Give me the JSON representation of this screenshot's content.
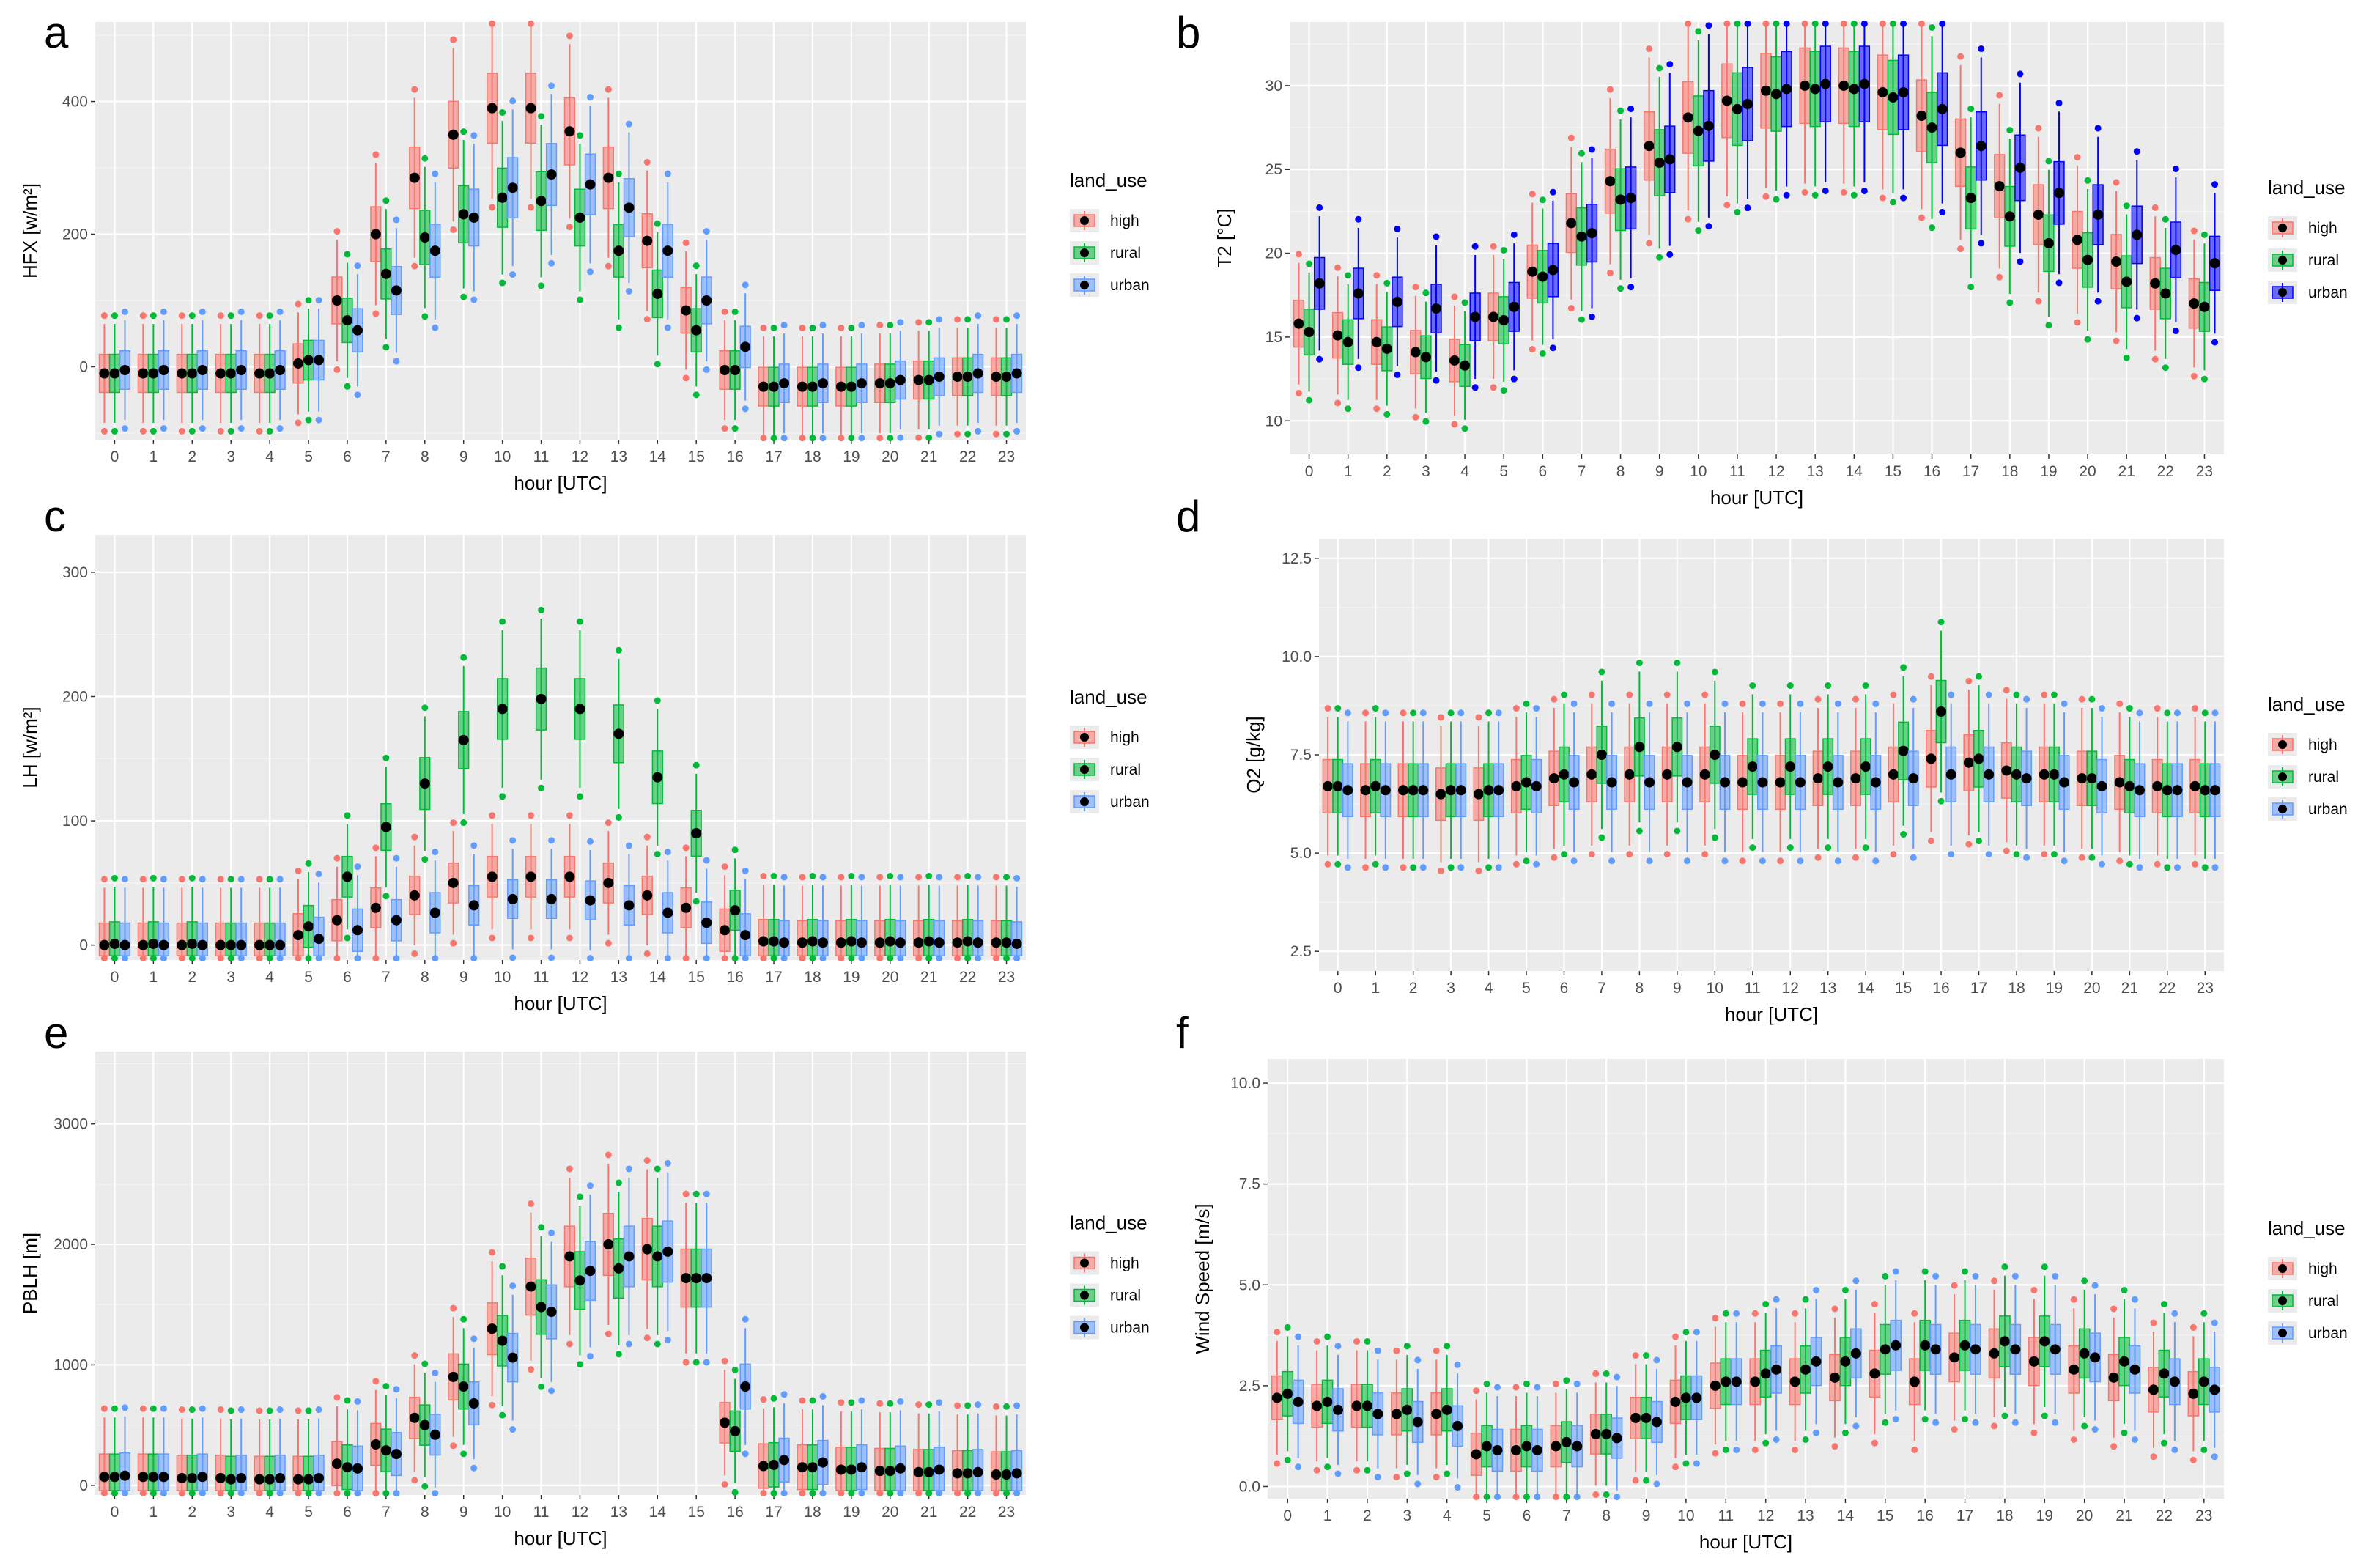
{
  "figure": {
    "legend_title": "land_use",
    "legend_entries": [
      "high",
      "rural",
      "urban"
    ],
    "xlabel": "hour [UTC]"
  },
  "chart_data": [
    {
      "panel": "a",
      "type": "box",
      "ylabel": "HFX [w/m²]",
      "xlabel": "hour [UTC]",
      "categories": [
        "0",
        "1",
        "2",
        "3",
        "4",
        "5",
        "6",
        "7",
        "8",
        "9",
        "10",
        "11",
        "12",
        "13",
        "14",
        "15",
        "16",
        "17",
        "18",
        "19",
        "20",
        "21",
        "22",
        "23"
      ],
      "ylim": [
        -110,
        520
      ],
      "yticks": [
        0,
        200,
        400
      ],
      "ytick_labels": [
        "0",
        "200",
        "400"
      ],
      "series": [
        {
          "name": "high",
          "color": "#F8766D",
          "medians": [
            -10,
            -10,
            -10,
            -10,
            -10,
            5,
            100,
            200,
            285,
            350,
            390,
            390,
            355,
            285,
            190,
            85,
            -5,
            -30,
            -30,
            -30,
            -25,
            -20,
            -15,
            -15
          ]
        },
        {
          "name": "rural",
          "color": "#00BA38",
          "medians": [
            -10,
            -10,
            -10,
            -10,
            -10,
            10,
            70,
            140,
            195,
            230,
            255,
            250,
            225,
            175,
            110,
            55,
            -5,
            -30,
            -30,
            -30,
            -25,
            -20,
            -15,
            -15
          ]
        },
        {
          "name": "urban",
          "color": "#619CFF",
          "medians": [
            -5,
            -5,
            -5,
            -5,
            -5,
            10,
            55,
            115,
            175,
            225,
            270,
            290,
            275,
            240,
            175,
            100,
            30,
            -25,
            -25,
            -25,
            -20,
            -15,
            -10,
            -10
          ]
        }
      ]
    },
    {
      "panel": "b",
      "type": "box",
      "ylabel": "T2 [°C]",
      "xlabel": "hour [UTC]",
      "categories": [
        "0",
        "1",
        "2",
        "3",
        "4",
        "5",
        "6",
        "7",
        "8",
        "9",
        "10",
        "11",
        "12",
        "13",
        "14",
        "15",
        "16",
        "17",
        "18",
        "19",
        "20",
        "21",
        "22",
        "23"
      ],
      "ylim": [
        8,
        33.8
      ],
      "yticks": [
        10,
        15,
        20,
        25,
        30
      ],
      "ytick_labels": [
        "10",
        "15",
        "20",
        "25",
        "30"
      ],
      "series": [
        {
          "name": "high",
          "color": "#F8766D",
          "medians": [
            15.8,
            15.1,
            14.7,
            14.1,
            13.6,
            16.2,
            18.9,
            21.8,
            24.3,
            26.4,
            28.1,
            29.1,
            29.7,
            30.0,
            30.0,
            29.6,
            28.2,
            26.0,
            24.0,
            22.3,
            20.8,
            19.5,
            18.2,
            17.0
          ]
        },
        {
          "name": "rural",
          "color": "#00BA38",
          "medians": [
            15.3,
            14.7,
            14.3,
            13.8,
            13.3,
            16.0,
            18.6,
            21.0,
            23.2,
            25.4,
            27.3,
            28.6,
            29.5,
            29.8,
            29.8,
            29.3,
            27.5,
            23.3,
            22.2,
            20.6,
            19.6,
            18.3,
            17.6,
            16.8
          ]
        },
        {
          "name": "urban",
          "color": "#0000FF",
          "medians": [
            18.2,
            17.6,
            17.1,
            16.7,
            16.2,
            16.8,
            19.0,
            21.2,
            23.3,
            25.6,
            27.6,
            28.9,
            29.8,
            30.1,
            30.1,
            29.6,
            28.6,
            26.4,
            25.1,
            23.6,
            22.3,
            21.1,
            20.2,
            19.4
          ]
        }
      ]
    },
    {
      "panel": "c",
      "type": "box",
      "ylabel": "LH [w/m²]",
      "xlabel": "hour [UTC]",
      "categories": [
        "0",
        "1",
        "2",
        "3",
        "4",
        "5",
        "6",
        "7",
        "8",
        "9",
        "10",
        "11",
        "12",
        "13",
        "14",
        "15",
        "16",
        "17",
        "18",
        "19",
        "20",
        "21",
        "22",
        "23"
      ],
      "ylim": [
        -12,
        330
      ],
      "yticks": [
        0,
        100,
        200,
        300
      ],
      "ytick_labels": [
        "0",
        "100",
        "200",
        "300"
      ],
      "series": [
        {
          "name": "high",
          "color": "#F8766D",
          "medians": [
            0,
            0,
            0,
            0,
            0,
            8,
            20,
            30,
            40,
            50,
            55,
            55,
            55,
            50,
            40,
            30,
            12,
            3,
            2,
            2,
            2,
            2,
            2,
            2
          ]
        },
        {
          "name": "rural",
          "color": "#00BA38",
          "medians": [
            1,
            1,
            1,
            0,
            0,
            15,
            55,
            95,
            130,
            165,
            190,
            198,
            190,
            170,
            135,
            90,
            28,
            3,
            3,
            3,
            3,
            3,
            3,
            2
          ]
        },
        {
          "name": "urban",
          "color": "#619CFF",
          "medians": [
            0,
            0,
            0,
            0,
            0,
            5,
            12,
            20,
            26,
            32,
            37,
            37,
            36,
            32,
            26,
            18,
            8,
            2,
            2,
            2,
            2,
            2,
            2,
            1
          ]
        }
      ]
    },
    {
      "panel": "d",
      "type": "box",
      "ylabel": "Q2 [g/kg]",
      "xlabel": "hour [UTC]",
      "categories": [
        "0",
        "1",
        "2",
        "3",
        "4",
        "5",
        "6",
        "7",
        "8",
        "9",
        "10",
        "11",
        "12",
        "13",
        "14",
        "15",
        "16",
        "17",
        "18",
        "19",
        "20",
        "21",
        "22",
        "23"
      ],
      "ylim": [
        2.0,
        13.0
      ],
      "yticks": [
        2.5,
        5.0,
        7.5,
        10.0,
        12.5
      ],
      "ytick_labels": [
        "2.5",
        "5.0",
        "7.5",
        "10.0",
        "12.5"
      ],
      "series": [
        {
          "name": "high",
          "color": "#F8766D",
          "medians": [
            6.7,
            6.6,
            6.6,
            6.5,
            6.5,
            6.7,
            6.9,
            7.0,
            7.0,
            7.0,
            7.0,
            6.8,
            6.8,
            6.9,
            6.9,
            7.0,
            7.4,
            7.3,
            7.1,
            7.0,
            6.9,
            6.8,
            6.7,
            6.7
          ]
        },
        {
          "name": "rural",
          "color": "#00BA38",
          "medians": [
            6.7,
            6.7,
            6.6,
            6.6,
            6.6,
            6.8,
            7.0,
            7.5,
            7.7,
            7.7,
            7.5,
            7.2,
            7.2,
            7.2,
            7.2,
            7.6,
            8.6,
            7.4,
            7.0,
            7.0,
            6.9,
            6.7,
            6.6,
            6.6
          ]
        },
        {
          "name": "urban",
          "color": "#619CFF",
          "medians": [
            6.6,
            6.6,
            6.6,
            6.6,
            6.6,
            6.7,
            6.8,
            6.8,
            6.8,
            6.8,
            6.8,
            6.8,
            6.8,
            6.8,
            6.8,
            6.9,
            7.0,
            7.0,
            6.9,
            6.8,
            6.7,
            6.6,
            6.6,
            6.6
          ]
        }
      ]
    },
    {
      "panel": "e",
      "type": "box",
      "ylabel": "PBLH [m]",
      "xlabel": "hour [UTC]",
      "categories": [
        "0",
        "1",
        "2",
        "3",
        "4",
        "5",
        "6",
        "7",
        "8",
        "9",
        "10",
        "11",
        "12",
        "13",
        "14",
        "15",
        "16",
        "17",
        "18",
        "19",
        "20",
        "21",
        "22",
        "23"
      ],
      "ylim": [
        -80,
        3600
      ],
      "yticks": [
        0,
        1000,
        2000,
        3000
      ],
      "ytick_labels": [
        "0",
        "1000",
        "2000",
        "3000"
      ],
      "series": [
        {
          "name": "high",
          "color": "#F8766D",
          "medians": [
            70,
            70,
            60,
            60,
            50,
            50,
            180,
            340,
            560,
            900,
            1300,
            1650,
            1900,
            2000,
            1960,
            1720,
            520,
            160,
            150,
            130,
            120,
            110,
            100,
            90
          ]
        },
        {
          "name": "rural",
          "color": "#00BA38",
          "medians": [
            70,
            70,
            60,
            50,
            50,
            50,
            150,
            290,
            500,
            820,
            1200,
            1480,
            1700,
            1800,
            1900,
            1720,
            450,
            170,
            150,
            130,
            120,
            110,
            100,
            90
          ]
        },
        {
          "name": "urban",
          "color": "#619CFF",
          "medians": [
            80,
            70,
            70,
            60,
            60,
            60,
            140,
            260,
            420,
            680,
            1060,
            1440,
            1780,
            1900,
            1940,
            1720,
            820,
            210,
            190,
            150,
            140,
            130,
            110,
            100
          ]
        }
      ]
    },
    {
      "panel": "f",
      "type": "box",
      "ylabel": "Wind Speed [m/s]",
      "xlabel": "hour [UTC]",
      "categories": [
        "0",
        "1",
        "2",
        "3",
        "4",
        "5",
        "6",
        "7",
        "8",
        "9",
        "10",
        "11",
        "12",
        "13",
        "14",
        "15",
        "16",
        "17",
        "18",
        "19",
        "20",
        "21",
        "22",
        "23"
      ],
      "ylim": [
        -0.3,
        10.6
      ],
      "yticks": [
        0.0,
        2.5,
        5.0,
        7.5,
        10.0
      ],
      "ytick_labels": [
        "0.0",
        "2.5",
        "5.0",
        "7.5",
        "10.0"
      ],
      "series": [
        {
          "name": "high",
          "color": "#F8766D",
          "medians": [
            2.2,
            2.0,
            2.0,
            1.8,
            1.8,
            0.8,
            0.9,
            1.0,
            1.3,
            1.7,
            2.1,
            2.5,
            2.6,
            2.6,
            2.7,
            2.8,
            2.6,
            3.2,
            3.3,
            3.1,
            2.9,
            2.7,
            2.4,
            2.3
          ]
        },
        {
          "name": "rural",
          "color": "#00BA38",
          "medians": [
            2.3,
            2.1,
            2.0,
            1.9,
            1.9,
            1.0,
            1.0,
            1.1,
            1.3,
            1.7,
            2.2,
            2.6,
            2.8,
            2.9,
            3.1,
            3.4,
            3.5,
            3.5,
            3.6,
            3.6,
            3.3,
            3.1,
            2.8,
            2.6
          ]
        },
        {
          "name": "urban",
          "color": "#619CFF",
          "medians": [
            2.1,
            1.9,
            1.8,
            1.6,
            1.5,
            0.9,
            0.9,
            1.0,
            1.2,
            1.6,
            2.2,
            2.6,
            2.9,
            3.1,
            3.3,
            3.5,
            3.4,
            3.4,
            3.4,
            3.4,
            3.2,
            2.9,
            2.6,
            2.4
          ]
        }
      ]
    }
  ]
}
